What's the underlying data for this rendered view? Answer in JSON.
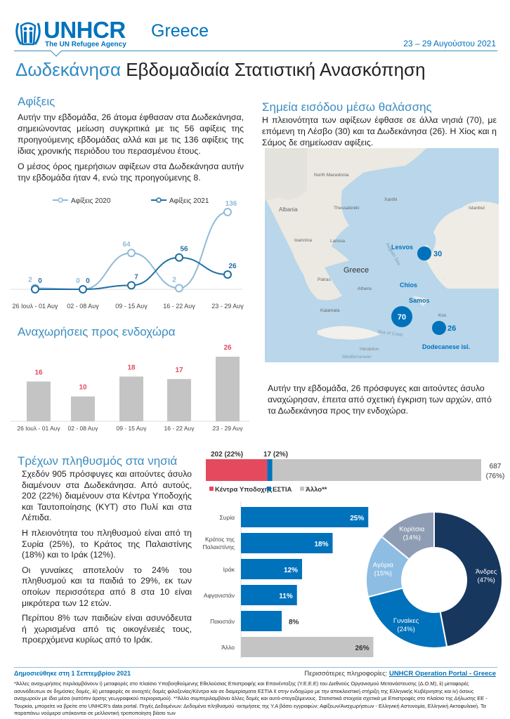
{
  "header": {
    "org": "UNHCR",
    "tagline": "The UN Refugee Agency",
    "country": "Greece",
    "date": "23 – 29 Αυγούστου 2021",
    "title_accent": "Δωδεκάνησα",
    "title_rest": "Εβδομαδιαία Στατιστική Ανασκόπηση"
  },
  "colors": {
    "brand": "#0072bc",
    "heading": "#3a8cc1",
    "light": "#8fbad8",
    "pink": "#e5495e",
    "grey": "#c4c4c4",
    "navy": "#18375f"
  },
  "arrivals": {
    "heading": "Αφίξεις",
    "p1": "Αυτήν την εβδομάδα, 26 άτομα έφθασαν στα Δωδεκάνησα, σημειώνοντας μείωση συγκριτικά με τις 56 αφίξεις της προηγούμενης εβδομάδας αλλά και με τις 136 αφίξεις της ίδιας χρονικής περιόδου του περασμένου έτους.",
    "p2": "Ο μέσος όρος ημερήσιων αφίξεων στα Δωδεκάνησα αυτήν την εβδομάδα ήταν 4, ενώ της προηγούμενης 8."
  },
  "chart_data": [
    {
      "type": "line",
      "categories": [
        "26 Ιουλ - 01 Αυγ",
        "02 - 08 Αυγ",
        "09 - 15 Αυγ",
        "16 - 22 Αυγ",
        "23 - 29 Αυγ"
      ],
      "series": [
        {
          "name": "Αφίξεις 2020",
          "values": [
            2,
            0,
            64,
            2,
            136
          ],
          "color": "#8fbad8"
        },
        {
          "name": "Αφίξεις 2021",
          "values": [
            0,
            0,
            7,
            56,
            26
          ],
          "color": "#1f6fa3"
        }
      ],
      "legend": "top"
    },
    {
      "type": "bar",
      "title": "Αναχωρήσεις προς ενδοχώρα",
      "categories": [
        "26 Ιουλ - 01 Αυγ",
        "02 - 08 Αυγ",
        "09 - 15 Αυγ",
        "16 - 22 Αυγ",
        "23 - 29 Αυγ"
      ],
      "values": [
        16,
        10,
        18,
        17,
        26
      ]
    },
    {
      "type": "bar",
      "orientation": "stacked-horizontal",
      "series": [
        {
          "name": "Κέντρα Υποδοχής",
          "value": 202,
          "label": "202  (22%)",
          "color": "#e5495e"
        },
        {
          "name": "ΕΣΤΙΑ",
          "value": 17,
          "label": "17  (2%)",
          "color": "#0072bc"
        },
        {
          "name": "Άλλο**",
          "value": 687,
          "label": "687",
          "label2": "(76%)",
          "color": "#c4c4c4"
        }
      ]
    },
    {
      "type": "bar",
      "orientation": "horizontal",
      "categories": [
        "Συρία",
        "Κράτος της Παλαιστίνης",
        "Ιράκ",
        "Αφγανιστάν",
        "Πακιστάν",
        "Άλλο"
      ],
      "values": [
        25,
        18,
        12,
        11,
        8,
        26
      ],
      "labels": [
        "25%",
        "18%",
        "12%",
        "11%",
        "8%",
        "26%"
      ]
    },
    {
      "type": "pie",
      "donut": true,
      "slices": [
        {
          "name": "Άνδρες",
          "value": 47,
          "label": "(47%)",
          "color": "#18375f"
        },
        {
          "name": "Γυναίκες",
          "value": 24,
          "label": "(24%)",
          "color": "#0072bc"
        },
        {
          "name": "Αγόρια",
          "value": 15,
          "label": "(15%)",
          "color": "#8ebde3"
        },
        {
          "name": "Κορίτσια",
          "value": 14,
          "label": "(14%)",
          "color": "#8e9db3"
        }
      ]
    }
  ],
  "sea": {
    "heading": "Σημεία εισόδου μέσω θαλάσσης",
    "text": "Η πλειονότητα των αφίξεων έφθασε σε άλλα νησιά (70), με επόμενη τη Λέσβο (30) και τα Δωδεκάνησα (26). Η Χίος και η Σάμος δε σημείωσαν αφίξεις.",
    "map": {
      "labels": {
        "north_macedonia": "North Macedonia",
        "albania": "Albania",
        "thessaloniki": "Thessaloniki",
        "xanthi": "Xanthi",
        "istanbul": "Istanbul",
        "ioannina": "Ioannina",
        "larissa": "Larissa",
        "greece": "Greece",
        "patras": "Patras",
        "athens": "Athens",
        "kalamata": "Kalamata",
        "aegean": "Aegean Sea",
        "crete_sea": "Sea of Crete",
        "heraklion": "Heraklion",
        "mediterranean": "Mediterranean",
        "kos": "Kos",
        "lesvos": "Lesvos",
        "chios": "Chios",
        "samos": "Samos",
        "dodecanese": "Dodecanese isl."
      },
      "bubbles": {
        "lesvos": "30",
        "other": "70",
        "dodecanese": "26"
      }
    }
  },
  "departures": {
    "heading": "Αναχωρήσεις προς ενδοχώρα",
    "text": "Αυτήν την εβδομάδα, 26 πρόσφυγες και αιτούντες άσυλο αναχώρησαν, έπειτα από σχετική έγκριση των αρχών, από τα Δωδεκάνησα προς την ενδοχώρα."
  },
  "population": {
    "heading": "Τρέχων πληθυσμός στα νησιά",
    "p1": "Σχεδόν 905 πρόσφυγες και αιτούντες άσυλο διαμένουν στα Δωδεκάνησα. Από αυτούς, 202 (22%) διαμένουν στα Κέντρα Υποδοχής και Ταυτοποίησης (ΚΥΤ) στο Πυλί και στα Λέπιδα.",
    "p2": "Η πλειονότητα του πληθυσμού είναι από τη Συρία (25%), το Κράτος της Παλαιστίνης (18%) και το Ιράκ (12%).",
    "p3": "Οι γυναίκες αποτελούν το 24% του πληθυσμού και τα παιδιά το 29%, εκ των οποίων περισσότερα από 8 στα 10 είναι μικρότερα των 12 ετών.",
    "p4": "Περίπου 8% των παιδιών είναι ασυνόδευτα ή χωρισμένα από τις οικογένειές τους, προερχόμενα κυρίως από το Ιράκ."
  },
  "footer": {
    "published": "Δημοσιεύθηκε στη 1 Σεπτεμβρίου  2021",
    "more_info": "Περισσότερες πληροφορίες: ",
    "portal_link": "UNHCR Operation Portal - Greece",
    "note": "*Άλλες αναχωρήσεις περιλαμβάνουν i) μεταφορές στο πλαίσιο Υποβοηθούμενης Εθελούσιας Επιστροφής και Επανένταξης (Υ.Ε.Ε.Ε) του Διεθνούς Οργανισμού Μετανάστευσης (Δ.Ο.Μ), ii) μεταφορές ασυνόδευτων σε δημόσιες δομές, iii) μεταφορές σε ανοιχτές δομές φιλοξενίας/Κέντρα και σε διαμερίσματα ΕΣΤΙΑ ΙΙ στην ενδοχώρα με την αποκλειστική στήριξη της Ελληνικής Κυβέρνησης και iv) όσους αναχωρούν με ίδια μέσα (κατόπιν άρσης γεωγραφικού περιορισμού). **Άλλο συμπεριλαμβάνει άλλες δομές και αυτό-στεγαζόμενους. Στατιστικά στοιχεία σχετικά με Επιστροφές στο πλαίσιο της Δήλωσης ΕΕ - Τουρκία, μπορείτε να βρείτε στο  UNHCR's data portal. Πηγές Δεδομένων: Δεδομένα πληθυσμού -εκτιμήσεις της Υ.Α βάσει εγγραφών; Αφίξεων/Αναχωρήσεων - Ελληνική Αστυνομία, Ελληνική Ακτοφυλακή. Τα παραπάνω νούμερα υπόκεινται σε μελλοντική τροποποίηση βάσει των"
  }
}
